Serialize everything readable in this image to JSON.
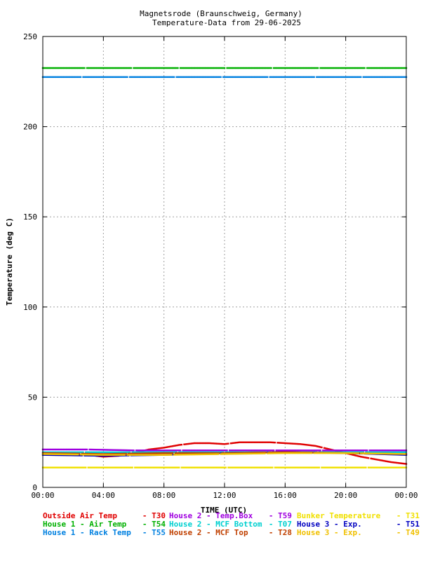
{
  "chart_data": {
    "type": "scatter",
    "title": "Magnetsrode (Braunschweig, Germany)",
    "subtitle": "Temperature-Data from 29-06-2025",
    "xlabel": "TIME (UTC)",
    "ylabel": "Temperature (deg C)",
    "xlim": [
      0,
      24
    ],
    "ylim": [
      0,
      250
    ],
    "grid": true,
    "x_ticks": [
      0,
      4,
      8,
      12,
      16,
      20,
      24
    ],
    "x_tick_labels": [
      "00:00",
      "04:00",
      "08:00",
      "12:00",
      "16:00",
      "20:00",
      "00:00"
    ],
    "y_ticks": [
      0,
      50,
      100,
      150,
      200,
      250
    ],
    "y_tick_labels": [
      "0",
      "50",
      "100",
      "150",
      "200",
      "250"
    ],
    "legend_placement": "bottom",
    "series": [
      {
        "name": "Outside Air Temp",
        "code": "T30",
        "color": "#e00000",
        "points": [
          [
            0,
            19.5
          ],
          [
            1,
            19
          ],
          [
            2,
            18.5
          ],
          [
            3,
            18
          ],
          [
            4,
            17
          ],
          [
            5,
            17.5
          ],
          [
            6,
            19
          ],
          [
            7,
            21
          ],
          [
            8,
            22
          ],
          [
            9,
            23.5
          ],
          [
            10,
            24.5
          ],
          [
            11,
            24.5
          ],
          [
            12,
            24
          ],
          [
            13,
            25
          ],
          [
            14,
            25
          ],
          [
            15,
            25
          ],
          [
            16,
            24.5
          ],
          [
            17,
            24
          ],
          [
            18,
            23
          ],
          [
            19,
            21
          ],
          [
            20,
            19
          ],
          [
            21,
            17
          ],
          [
            22,
            15.5
          ],
          [
            23,
            14
          ],
          [
            24,
            13
          ]
        ]
      },
      {
        "name": "House 2 - Temp.Box",
        "code": "T59",
        "color": "#a000e0",
        "points": [
          [
            0,
            21
          ],
          [
            3,
            21
          ],
          [
            6,
            20.5
          ],
          [
            9,
            20.5
          ],
          [
            12,
            20.5
          ],
          [
            15,
            20.5
          ],
          [
            18,
            20.5
          ],
          [
            21,
            20.5
          ],
          [
            24,
            20.5
          ]
        ]
      },
      {
        "name": "Bunker Temperature",
        "code": "T31",
        "color": "#f0e000",
        "points": [
          [
            0,
            11
          ],
          [
            6,
            11
          ],
          [
            12,
            11
          ],
          [
            18,
            11
          ],
          [
            24,
            11
          ]
        ]
      },
      {
        "name": "House 1 - Air  Temp",
        "code": "T54",
        "color": "#00b000",
        "points": [
          [
            0,
            232.5
          ],
          [
            6,
            232.5
          ],
          [
            12,
            232.5
          ],
          [
            18,
            232.5
          ],
          [
            24,
            232.5
          ]
        ]
      },
      {
        "name": "House 2 - MCF Bottom",
        "code": "T07",
        "color": "#00d0d0",
        "points": [
          [
            0,
            19.5
          ],
          [
            6,
            19.5
          ],
          [
            12,
            19.5
          ],
          [
            18,
            19.5
          ],
          [
            24,
            19.5
          ]
        ]
      },
      {
        "name": "House 3 - Exp.",
        "code": "T51",
        "color": "#0000c0",
        "points": [
          [
            0,
            18
          ],
          [
            4,
            17.5
          ],
          [
            8,
            18
          ],
          [
            12,
            19
          ],
          [
            16,
            19.5
          ],
          [
            20,
            19
          ],
          [
            24,
            18
          ]
        ]
      },
      {
        "name": "House 1 - Rack Temp",
        "code": "T55",
        "color": "#0080e0",
        "points": [
          [
            0,
            227.5
          ],
          [
            6,
            227.5
          ],
          [
            12,
            227.5
          ],
          [
            18,
            227.5
          ],
          [
            24,
            227.5
          ]
        ]
      },
      {
        "name": "House 2 - MCF Top",
        "code": "T28",
        "color": "#c04000",
        "points": [
          [
            0,
            19
          ],
          [
            4,
            18.5
          ],
          [
            8,
            19
          ],
          [
            12,
            19
          ],
          [
            16,
            19.5
          ],
          [
            20,
            19
          ],
          [
            24,
            18.5
          ]
        ]
      },
      {
        "name": "House 3 - Exp.",
        "code": "T49",
        "color": "#f0c000",
        "points": [
          [
            0,
            18.5
          ],
          [
            4,
            18
          ],
          [
            8,
            18
          ],
          [
            12,
            18.5
          ],
          [
            16,
            19
          ],
          [
            20,
            19
          ],
          [
            24,
            18.5
          ]
        ]
      }
    ]
  }
}
